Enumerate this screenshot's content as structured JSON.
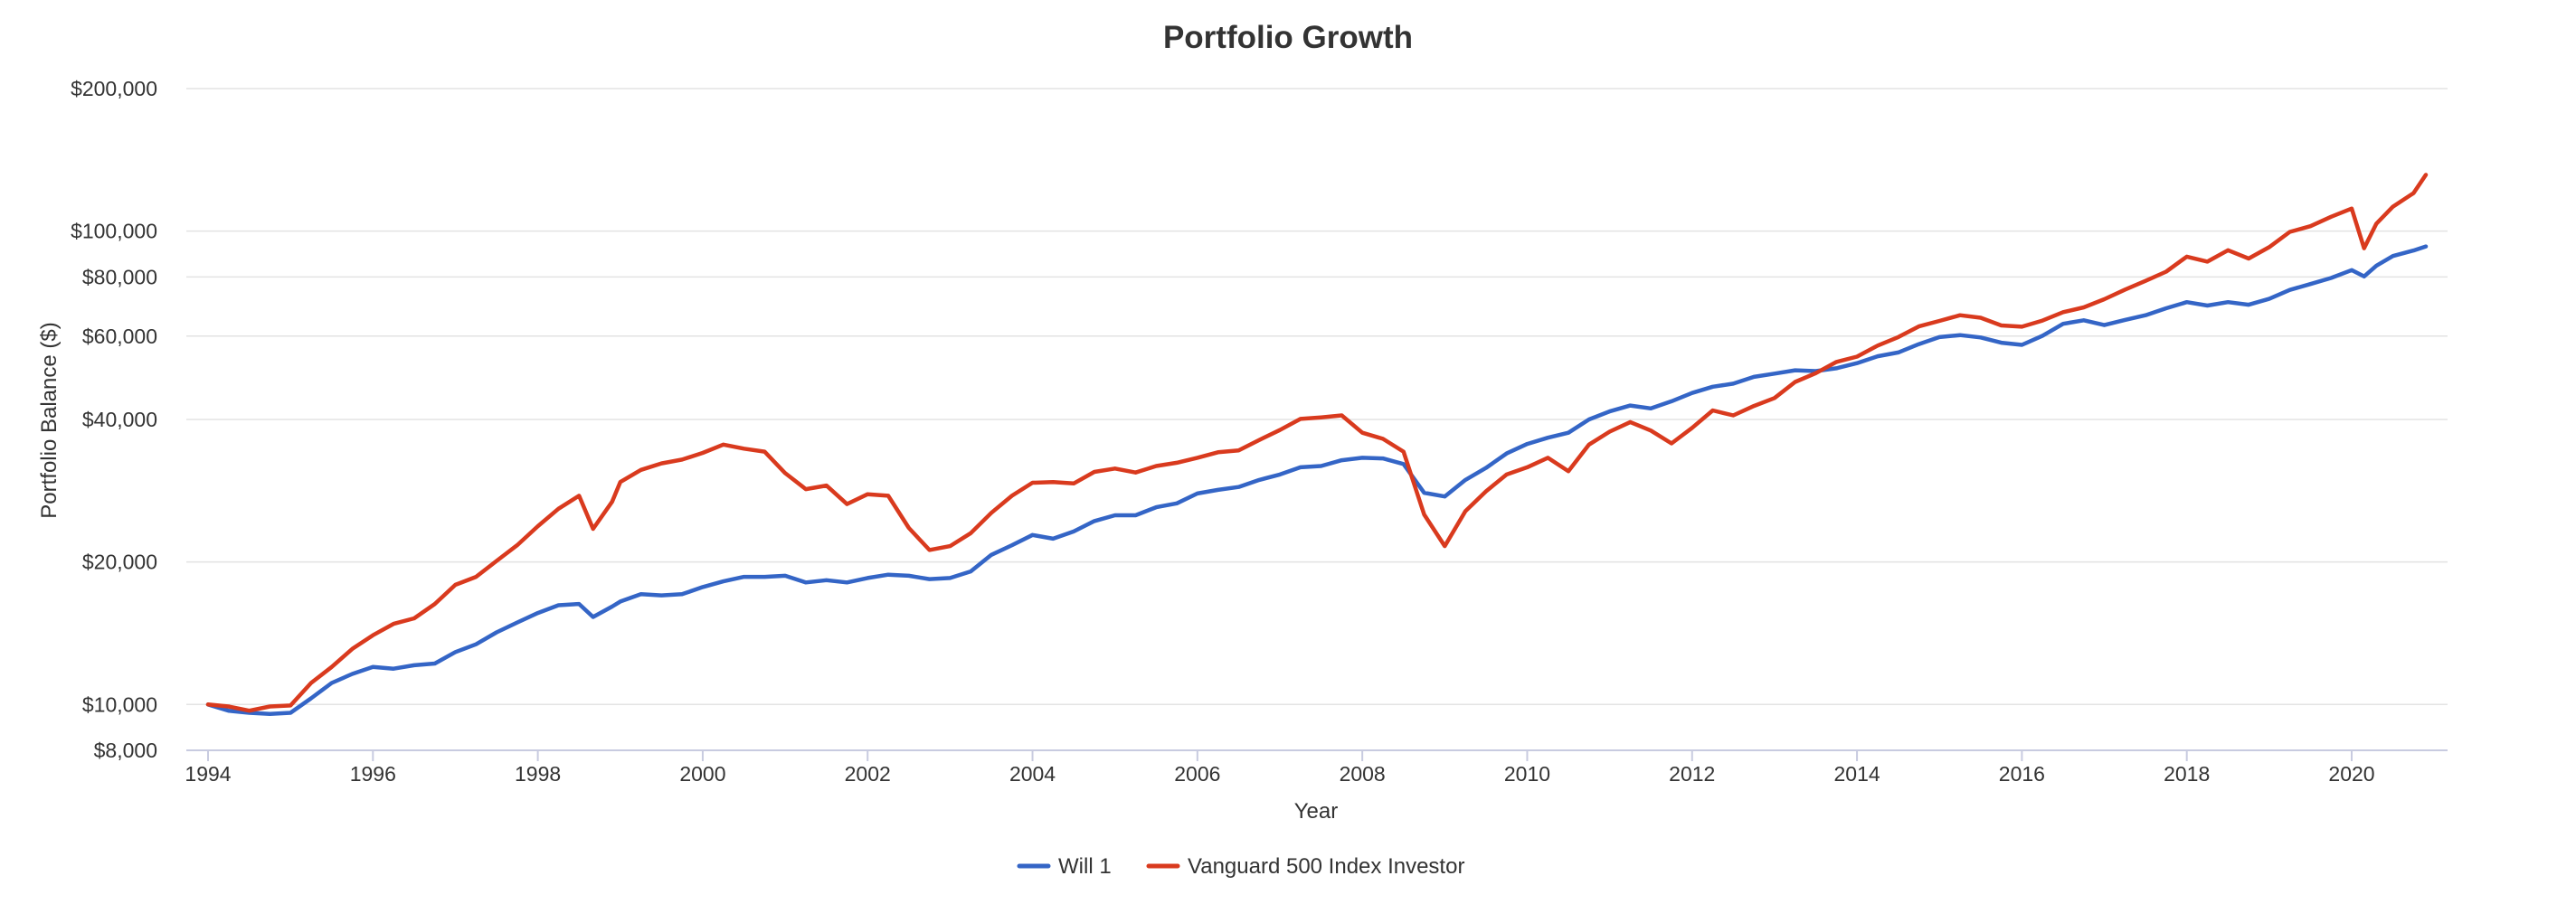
{
  "chart_data": {
    "type": "line",
    "title": "Portfolio Growth",
    "xlabel": "Year",
    "ylabel": "Portfolio Balance ($)",
    "y_scale": "log",
    "ylim": [
      8000,
      200000
    ],
    "xlim": [
      1994,
      2021
    ],
    "grid": true,
    "legend_position": "bottom",
    "y_ticks": [
      {
        "value": 8000,
        "label": "$8,000"
      },
      {
        "value": 10000,
        "label": "$10,000"
      },
      {
        "value": 20000,
        "label": "$20,000"
      },
      {
        "value": 40000,
        "label": "$40,000"
      },
      {
        "value": 60000,
        "label": "$60,000"
      },
      {
        "value": 80000,
        "label": "$80,000"
      },
      {
        "value": 100000,
        "label": "$100,000"
      },
      {
        "value": 200000,
        "label": "$200,000"
      }
    ],
    "x_ticks": [
      {
        "value": 1994,
        "label": "1994"
      },
      {
        "value": 1996,
        "label": "1996"
      },
      {
        "value": 1998,
        "label": "1998"
      },
      {
        "value": 2000,
        "label": "2000"
      },
      {
        "value": 2002,
        "label": "2002"
      },
      {
        "value": 2004,
        "label": "2004"
      },
      {
        "value": 2006,
        "label": "2006"
      },
      {
        "value": 2008,
        "label": "2008"
      },
      {
        "value": 2010,
        "label": "2010"
      },
      {
        "value": 2012,
        "label": "2012"
      },
      {
        "value": 2014,
        "label": "2014"
      },
      {
        "value": 2016,
        "label": "2016"
      },
      {
        "value": 2018,
        "label": "2018"
      },
      {
        "value": 2020,
        "label": "2020"
      }
    ],
    "series": [
      {
        "name": "Will 1",
        "color": "#3465c6",
        "points": [
          [
            1994.0,
            10000
          ],
          [
            1994.25,
            9700
          ],
          [
            1994.5,
            9600
          ],
          [
            1994.75,
            9550
          ],
          [
            1995.0,
            9600
          ],
          [
            1995.25,
            10300
          ],
          [
            1995.5,
            11100
          ],
          [
            1995.75,
            11600
          ],
          [
            1996.0,
            12000
          ],
          [
            1996.25,
            11900
          ],
          [
            1996.5,
            12100
          ],
          [
            1996.75,
            12200
          ],
          [
            1997.0,
            12900
          ],
          [
            1997.25,
            13400
          ],
          [
            1997.5,
            14200
          ],
          [
            1997.75,
            14900
          ],
          [
            1998.0,
            15600
          ],
          [
            1998.25,
            16200
          ],
          [
            1998.5,
            16300
          ],
          [
            1998.67,
            15300
          ],
          [
            1998.9,
            16100
          ],
          [
            1999.0,
            16500
          ],
          [
            1999.25,
            17100
          ],
          [
            1999.5,
            17000
          ],
          [
            1999.75,
            17100
          ],
          [
            2000.0,
            17700
          ],
          [
            2000.25,
            18200
          ],
          [
            2000.5,
            18600
          ],
          [
            2000.75,
            18600
          ],
          [
            2001.0,
            18700
          ],
          [
            2001.25,
            18100
          ],
          [
            2001.5,
            18300
          ],
          [
            2001.75,
            18100
          ],
          [
            2002.0,
            18500
          ],
          [
            2002.25,
            18800
          ],
          [
            2002.5,
            18700
          ],
          [
            2002.75,
            18400
          ],
          [
            2003.0,
            18500
          ],
          [
            2003.25,
            19100
          ],
          [
            2003.5,
            20700
          ],
          [
            2003.75,
            21700
          ],
          [
            2004.0,
            22800
          ],
          [
            2004.25,
            22400
          ],
          [
            2004.5,
            23200
          ],
          [
            2004.75,
            24400
          ],
          [
            2005.0,
            25100
          ],
          [
            2005.25,
            25100
          ],
          [
            2005.5,
            26100
          ],
          [
            2005.75,
            26600
          ],
          [
            2006.0,
            27900
          ],
          [
            2006.25,
            28400
          ],
          [
            2006.5,
            28800
          ],
          [
            2006.75,
            29800
          ],
          [
            2007.0,
            30600
          ],
          [
            2007.25,
            31700
          ],
          [
            2007.5,
            31900
          ],
          [
            2007.75,
            32800
          ],
          [
            2008.0,
            33200
          ],
          [
            2008.25,
            33100
          ],
          [
            2008.5,
            32200
          ],
          [
            2008.75,
            28000
          ],
          [
            2009.0,
            27500
          ],
          [
            2009.25,
            29800
          ],
          [
            2009.5,
            31600
          ],
          [
            2009.75,
            33900
          ],
          [
            2010.0,
            35500
          ],
          [
            2010.25,
            36600
          ],
          [
            2010.5,
            37500
          ],
          [
            2010.75,
            40000
          ],
          [
            2011.0,
            41600
          ],
          [
            2011.25,
            42800
          ],
          [
            2011.5,
            42200
          ],
          [
            2011.75,
            43700
          ],
          [
            2012.0,
            45500
          ],
          [
            2012.25,
            46900
          ],
          [
            2012.5,
            47600
          ],
          [
            2012.75,
            49200
          ],
          [
            2013.0,
            50000
          ],
          [
            2013.25,
            50800
          ],
          [
            2013.5,
            50600
          ],
          [
            2013.75,
            51300
          ],
          [
            2014.0,
            52600
          ],
          [
            2014.25,
            54400
          ],
          [
            2014.5,
            55400
          ],
          [
            2014.75,
            57700
          ],
          [
            2015.0,
            59700
          ],
          [
            2015.25,
            60300
          ],
          [
            2015.5,
            59600
          ],
          [
            2015.75,
            58100
          ],
          [
            2016.0,
            57500
          ],
          [
            2016.25,
            60100
          ],
          [
            2016.5,
            63700
          ],
          [
            2016.75,
            64800
          ],
          [
            2017.0,
            63300
          ],
          [
            2017.25,
            64900
          ],
          [
            2017.5,
            66400
          ],
          [
            2017.75,
            68700
          ],
          [
            2018.0,
            70800
          ],
          [
            2018.25,
            69600
          ],
          [
            2018.5,
            70800
          ],
          [
            2018.75,
            69900
          ],
          [
            2019.0,
            71900
          ],
          [
            2019.25,
            75100
          ],
          [
            2019.5,
            77300
          ],
          [
            2019.75,
            79600
          ],
          [
            2020.0,
            82700
          ],
          [
            2020.15,
            80200
          ],
          [
            2020.3,
            84500
          ],
          [
            2020.5,
            88600
          ],
          [
            2020.75,
            91000
          ],
          [
            2020.9,
            92800
          ]
        ]
      },
      {
        "name": "Vanguard 500 Index Investor",
        "color": "#d93a1e",
        "points": [
          [
            1994.0,
            10000
          ],
          [
            1994.25,
            9900
          ],
          [
            1994.5,
            9700
          ],
          [
            1994.75,
            9900
          ],
          [
            1995.0,
            9950
          ],
          [
            1995.25,
            11100
          ],
          [
            1995.5,
            12000
          ],
          [
            1995.75,
            13100
          ],
          [
            1996.0,
            14000
          ],
          [
            1996.25,
            14800
          ],
          [
            1996.5,
            15200
          ],
          [
            1996.75,
            16300
          ],
          [
            1997.0,
            17900
          ],
          [
            1997.25,
            18600
          ],
          [
            1997.5,
            20100
          ],
          [
            1997.75,
            21700
          ],
          [
            1998.0,
            23800
          ],
          [
            1998.25,
            25900
          ],
          [
            1998.5,
            27600
          ],
          [
            1998.67,
            23500
          ],
          [
            1998.9,
            26800
          ],
          [
            1999.0,
            29500
          ],
          [
            1999.25,
            31300
          ],
          [
            1999.5,
            32300
          ],
          [
            1999.75,
            32900
          ],
          [
            2000.0,
            34000
          ],
          [
            2000.25,
            35400
          ],
          [
            2000.5,
            34700
          ],
          [
            2000.75,
            34200
          ],
          [
            2001.0,
            30800
          ],
          [
            2001.25,
            28500
          ],
          [
            2001.5,
            29000
          ],
          [
            2001.75,
            26500
          ],
          [
            2002.0,
            27800
          ],
          [
            2002.25,
            27600
          ],
          [
            2002.5,
            23600
          ],
          [
            2002.75,
            21200
          ],
          [
            2003.0,
            21600
          ],
          [
            2003.25,
            23000
          ],
          [
            2003.5,
            25400
          ],
          [
            2003.75,
            27600
          ],
          [
            2004.0,
            29400
          ],
          [
            2004.25,
            29500
          ],
          [
            2004.5,
            29300
          ],
          [
            2004.75,
            31000
          ],
          [
            2005.0,
            31500
          ],
          [
            2005.25,
            30900
          ],
          [
            2005.5,
            31900
          ],
          [
            2005.75,
            32400
          ],
          [
            2006.0,
            33200
          ],
          [
            2006.25,
            34100
          ],
          [
            2006.5,
            34400
          ],
          [
            2006.75,
            36200
          ],
          [
            2007.0,
            38000
          ],
          [
            2007.25,
            40100
          ],
          [
            2007.5,
            40400
          ],
          [
            2007.75,
            40800
          ],
          [
            2008.0,
            37500
          ],
          [
            2008.25,
            36400
          ],
          [
            2008.5,
            34200
          ],
          [
            2008.75,
            25200
          ],
          [
            2009.0,
            21600
          ],
          [
            2009.25,
            25600
          ],
          [
            2009.5,
            28200
          ],
          [
            2009.75,
            30600
          ],
          [
            2010.0,
            31700
          ],
          [
            2010.25,
            33200
          ],
          [
            2010.5,
            31100
          ],
          [
            2010.75,
            35400
          ],
          [
            2011.0,
            37700
          ],
          [
            2011.25,
            39500
          ],
          [
            2011.5,
            37900
          ],
          [
            2011.75,
            35600
          ],
          [
            2012.0,
            38400
          ],
          [
            2012.25,
            41800
          ],
          [
            2012.5,
            40800
          ],
          [
            2012.75,
            42700
          ],
          [
            2013.0,
            44400
          ],
          [
            2013.25,
            48000
          ],
          [
            2013.5,
            50100
          ],
          [
            2013.75,
            52900
          ],
          [
            2014.0,
            54300
          ],
          [
            2014.25,
            57300
          ],
          [
            2014.5,
            59700
          ],
          [
            2014.75,
            62900
          ],
          [
            2015.0,
            64600
          ],
          [
            2015.25,
            66400
          ],
          [
            2015.5,
            65600
          ],
          [
            2015.75,
            63200
          ],
          [
            2016.0,
            62800
          ],
          [
            2016.25,
            64700
          ],
          [
            2016.5,
            67400
          ],
          [
            2016.75,
            69000
          ],
          [
            2017.0,
            71800
          ],
          [
            2017.25,
            75200
          ],
          [
            2017.5,
            78500
          ],
          [
            2017.75,
            82100
          ],
          [
            2018.0,
            88300
          ],
          [
            2018.25,
            86200
          ],
          [
            2018.5,
            91100
          ],
          [
            2018.75,
            87500
          ],
          [
            2019.0,
            92500
          ],
          [
            2019.25,
            99600
          ],
          [
            2019.5,
            102400
          ],
          [
            2019.75,
            107200
          ],
          [
            2020.0,
            111600
          ],
          [
            2020.15,
            92000
          ],
          [
            2020.3,
            103700
          ],
          [
            2020.5,
            112600
          ],
          [
            2020.75,
            120300
          ],
          [
            2020.9,
            131500
          ]
        ]
      }
    ]
  }
}
